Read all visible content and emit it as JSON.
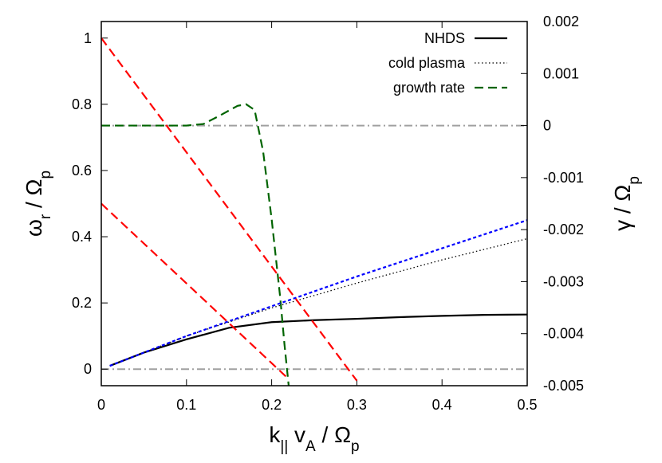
{
  "chart_data": {
    "type": "line",
    "xlabel": [
      "k",
      "||",
      " v",
      "A",
      " / Ω",
      "p"
    ],
    "ylabel": [
      "ω",
      "r",
      " / Ω",
      "p"
    ],
    "y2label": [
      "γ / Ω",
      "p"
    ],
    "xlim": [
      0,
      0.5
    ],
    "ylim": [
      -0.05,
      1.05
    ],
    "y2lim": [
      -0.005,
      0.002
    ],
    "xticks": [
      0,
      0.1,
      0.2,
      0.3,
      0.4,
      0.5
    ],
    "yticks": [
      0,
      0.2,
      0.4,
      0.6,
      0.8,
      1
    ],
    "y2ticks": [
      0.002,
      0.001,
      0,
      -0.001,
      -0.002,
      -0.003,
      -0.004,
      -0.005
    ],
    "legend": "top-right",
    "reference_lines": [
      {
        "axis": "y",
        "value": 0,
        "color": "#a0a0a0",
        "style": "dash-dot"
      },
      {
        "axis": "y2",
        "value": 0,
        "color": "#a0a0a0",
        "style": "dash-dot"
      }
    ],
    "series": [
      {
        "name": "NHDS",
        "color": "#000000",
        "style": "solid",
        "x": [
          0.01,
          0.05,
          0.1,
          0.15,
          0.2,
          0.25,
          0.3,
          0.35,
          0.4,
          0.45,
          0.5
        ],
        "values": [
          0.01,
          0.05,
          0.09,
          0.125,
          0.142,
          0.148,
          0.152,
          0.157,
          0.161,
          0.164,
          0.165
        ]
      },
      {
        "name": "cold plasma",
        "color": "#000000",
        "style": "dotted",
        "x": [
          0.01,
          0.1,
          0.2,
          0.3,
          0.4,
          0.5
        ],
        "values": [
          0.01,
          0.1,
          0.185,
          0.26,
          0.33,
          0.394
        ]
      },
      {
        "name": "growth rate",
        "color": "#006400",
        "style": "dashed",
        "axis": "y2",
        "x": [
          0,
          0.1,
          0.12,
          0.14,
          0.16,
          0.17,
          0.18,
          0.19,
          0.2,
          0.21,
          0.215,
          0.22
        ],
        "values": [
          0,
          0,
          3e-05,
          0.0002,
          0.00038,
          0.00041,
          0.0003,
          -0.0005,
          -0.0018,
          -0.0033,
          -0.0042,
          -0.005
        ]
      },
      {
        "color": "#0000ff",
        "style": "short-dash",
        "x": [
          0.01,
          0.1,
          0.2,
          0.3,
          0.4,
          0.5
        ],
        "values": [
          0.01,
          0.1,
          0.19,
          0.28,
          0.365,
          0.45
        ]
      },
      {
        "color": "#ff0000",
        "style": "dashed",
        "x": [
          0,
          0.3
        ],
        "values": [
          1,
          -0.035
        ]
      },
      {
        "color": "#ff0000",
        "style": "dashed",
        "x": [
          0,
          0.22
        ],
        "values": [
          0.5,
          -0.03
        ]
      }
    ]
  }
}
